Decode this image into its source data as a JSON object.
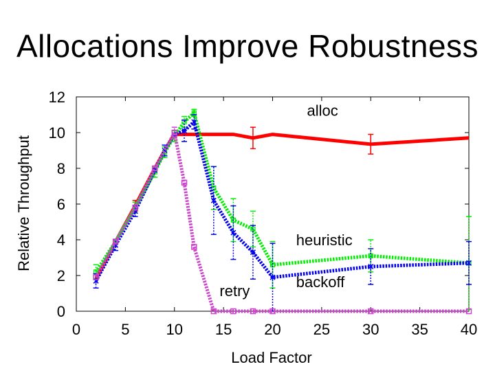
{
  "slide": {
    "title": "Allocations Improve Robustness"
  },
  "chart_data": {
    "type": "line",
    "xlabel": "Load Factor",
    "ylabel": "Relative Throughput",
    "xlim": [
      0,
      40
    ],
    "ylim": [
      0,
      12
    ],
    "xticks": [
      0,
      5,
      10,
      15,
      20,
      25,
      30,
      35,
      40
    ],
    "yticks": [
      0,
      2,
      4,
      6,
      8,
      10,
      12
    ],
    "grid": false,
    "legend": "inline labels",
    "series": [
      {
        "name": "alloc",
        "color": "#ff0000",
        "style": "solid",
        "x": [
          2,
          4,
          6,
          8,
          9,
          10,
          12,
          14,
          16,
          18,
          20,
          30,
          40
        ],
        "y": [
          1.8,
          3.9,
          5.9,
          8.0,
          9.0,
          9.9,
          9.9,
          9.9,
          9.9,
          9.7,
          9.9,
          9.35,
          9.7
        ],
        "err": [
          0,
          0,
          0.3,
          0,
          0,
          0,
          0,
          0,
          0,
          0.6,
          0,
          0.55,
          0
        ]
      },
      {
        "name": "heuristic",
        "color": "#00ee00",
        "style": "dotted",
        "x": [
          2,
          4,
          6,
          8,
          9,
          10,
          11,
          12,
          14,
          16,
          18,
          20,
          30,
          40
        ],
        "y": [
          2.2,
          3.9,
          5.8,
          7.8,
          8.9,
          9.8,
          10.6,
          11.1,
          6.9,
          5.1,
          4.6,
          2.6,
          3.1,
          2.7
        ],
        "err": [
          0.4,
          0,
          0.3,
          0.3,
          0.3,
          0.3,
          0.3,
          0.2,
          1.2,
          1.2,
          1.0,
          1.3,
          0.9,
          2.6
        ]
      },
      {
        "name": "backoff",
        "color": "#0000ee",
        "style": "dotted",
        "x": [
          2,
          4,
          6,
          8,
          9,
          10,
          11,
          12,
          14,
          16,
          18,
          20,
          30,
          40
        ],
        "y": [
          1.7,
          3.7,
          5.6,
          7.9,
          9.0,
          9.9,
          10.1,
          10.6,
          6.2,
          4.4,
          3.3,
          1.9,
          2.5,
          2.7
        ],
        "err": [
          0.4,
          0.3,
          0.3,
          0,
          0.3,
          0,
          0.6,
          0.4,
          1.9,
          1.5,
          1.5,
          1.9,
          1.0,
          1.2
        ]
      },
      {
        "name": "retry",
        "color": "#cc44cc",
        "style": "dotted",
        "x": [
          2,
          4,
          6,
          8,
          10,
          11,
          12,
          14,
          16,
          18,
          20,
          30,
          40
        ],
        "y": [
          1.9,
          3.9,
          5.8,
          8.0,
          10.0,
          7.2,
          3.6,
          0,
          0,
          0,
          0,
          0,
          0
        ],
        "err": [
          0,
          0,
          0,
          0,
          0.3,
          0,
          0,
          0,
          0,
          0,
          0,
          0,
          0
        ]
      }
    ],
    "annotations": [
      {
        "text": "alloc",
        "x": 23.5,
        "y": 10.95
      },
      {
        "text": "heuristic",
        "x": 22.4,
        "y": 3.7
      },
      {
        "text": "backoff",
        "x": 22.4,
        "y": 1.35
      },
      {
        "text": "retry",
        "x": 14.6,
        "y": 0.85
      }
    ]
  }
}
